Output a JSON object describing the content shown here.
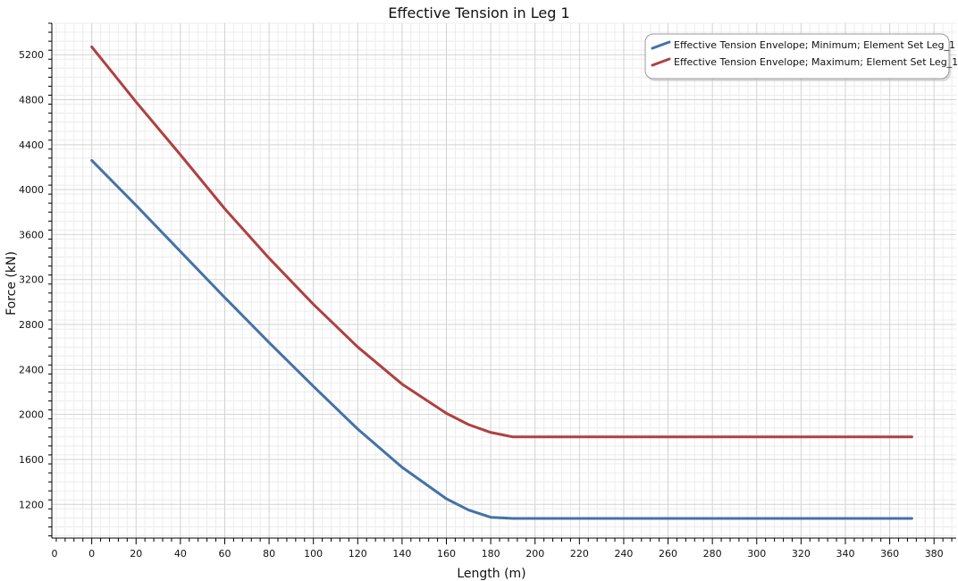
{
  "chart_data": {
    "type": "line",
    "title": "Effective Tension in Leg 1",
    "xlabel": "Length (m)",
    "ylabel": "Force (kN)",
    "xlim": [
      -18,
      390
    ],
    "ylim": [
      900,
      5480
    ],
    "x_ticks": [
      0,
      20,
      40,
      60,
      80,
      100,
      120,
      140,
      160,
      180,
      200,
      220,
      240,
      260,
      280,
      300,
      320,
      340,
      360,
      380
    ],
    "x_tick_labels": [
      "0",
      "20",
      "40",
      "60",
      "80",
      "100",
      "120",
      "140",
      "160",
      "180",
      "200",
      "220",
      "240",
      "260",
      "280",
      "300",
      "320",
      "340",
      "360",
      "380"
    ],
    "x_edge_label": "0",
    "y_ticks": [
      1200,
      1600,
      2000,
      2400,
      2800,
      3200,
      3600,
      4000,
      4400,
      4800,
      5200
    ],
    "y_tick_labels": [
      "1200",
      "1600",
      "2000",
      "2400",
      "2800",
      "3200",
      "3600",
      "4000",
      "4400",
      "4800",
      "5200"
    ],
    "grid": true,
    "legend_position": "top-right",
    "series": [
      {
        "name": "Effective Tension Envelope; Minimum; Element Set Leg_1",
        "color": "#4472a8",
        "x": [
          0,
          20,
          40,
          60,
          80,
          100,
          120,
          140,
          160,
          170,
          180,
          190,
          200,
          240,
          280,
          320,
          360,
          370
        ],
        "y": [
          4260,
          3860,
          3450,
          3040,
          2640,
          2250,
          1870,
          1530,
          1250,
          1150,
          1085,
          1075,
          1075,
          1075,
          1075,
          1075,
          1075,
          1075
        ]
      },
      {
        "name": "Effective Tension Envelope; Maximum; Element Set Leg_1",
        "color": "#b04040",
        "x": [
          0,
          20,
          40,
          60,
          80,
          100,
          120,
          140,
          160,
          170,
          180,
          190,
          200,
          240,
          280,
          320,
          360,
          370
        ],
        "y": [
          5270,
          4780,
          4310,
          3830,
          3390,
          2980,
          2600,
          2270,
          2010,
          1910,
          1840,
          1800,
          1800,
          1800,
          1800,
          1800,
          1800,
          1800
        ]
      }
    ]
  }
}
